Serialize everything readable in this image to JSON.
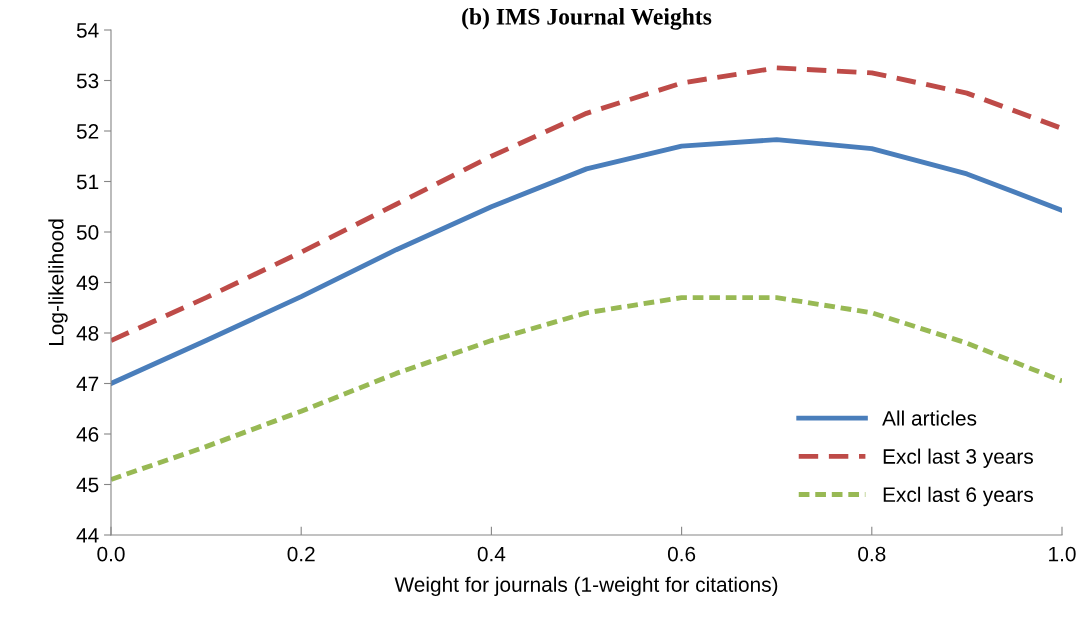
{
  "chart_data": {
    "type": "line",
    "title": "(b) IMS Journal Weights",
    "xlabel": "Weight for journals (1-weight for citations)",
    "ylabel": "Log-likelihood",
    "x": [
      0,
      0.1,
      0.2,
      0.3,
      0.4,
      0.5,
      0.6,
      0.7,
      0.8,
      0.9,
      1.0
    ],
    "series": [
      {
        "name": "All articles",
        "color": "#4a7ebb",
        "line_style": "solid",
        "values": [
          47.0,
          47.85,
          48.72,
          49.65,
          50.5,
          51.25,
          51.7,
          51.83,
          51.65,
          51.15,
          50.43
        ]
      },
      {
        "name": "Excl last 3 years",
        "color": "#be4b48",
        "line_style": "dashed",
        "values": [
          47.85,
          48.7,
          49.6,
          50.55,
          51.5,
          52.35,
          52.95,
          53.25,
          53.15,
          52.75,
          52.05
        ]
      },
      {
        "name": "Excl last 6 years",
        "color": "#98b954",
        "line_style": "dotted",
        "values": [
          45.1,
          45.75,
          46.45,
          47.2,
          47.85,
          48.4,
          48.7,
          48.7,
          48.4,
          47.8,
          47.05
        ]
      }
    ],
    "xlim": [
      0,
      1.0
    ],
    "xticks": [
      {
        "value": 0,
        "label": "0.0"
      },
      0.2,
      0.4,
      0.6,
      0.8,
      {
        "value": 1.0,
        "label": "1.0"
      }
    ],
    "ylim": [
      44,
      54
    ],
    "yticks": [
      44,
      45,
      46,
      47,
      48,
      49,
      50,
      51,
      52,
      53,
      54
    ],
    "grid": false,
    "legend": "bottom right",
    "marker": "none"
  }
}
